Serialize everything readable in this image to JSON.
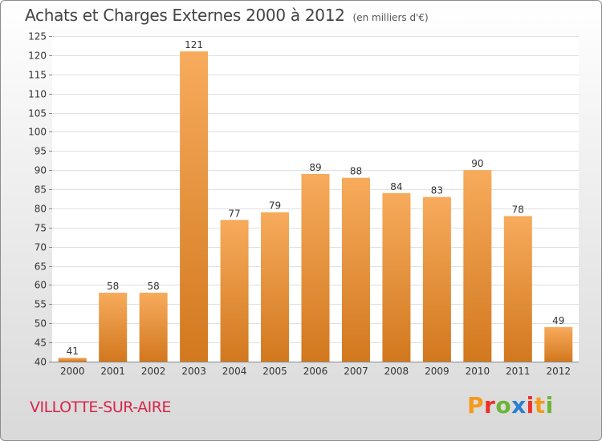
{
  "header": {
    "title": "Achats et Charges Externes 2000 à 2012",
    "unit": "(en milliers d'€)"
  },
  "footer": {
    "town": "VILLOTTE-SUR-AIRE",
    "brand": "Proxiti",
    "brand_colors": [
      "#f39a1e",
      "#e8322a",
      "#6bb536",
      "#2b7fd1",
      "#e8322a",
      "#f39a1e",
      "#6bb536"
    ]
  },
  "colors": {
    "bar_light": "#f7ab5c",
    "bar_dark": "#d2781e",
    "grid": "#e0e0e0",
    "axis_text": "#333333"
  },
  "chart_data": {
    "type": "bar",
    "title": "Achats et Charges Externes 2000 à 2012",
    "subtitle": "(en milliers d'€)",
    "xlabel": "",
    "ylabel": "",
    "categories": [
      "2000",
      "2001",
      "2002",
      "2003",
      "2004",
      "2005",
      "2006",
      "2007",
      "2008",
      "2009",
      "2010",
      "2011",
      "2012"
    ],
    "values": [
      41,
      58,
      58,
      121,
      77,
      79,
      89,
      88,
      84,
      83,
      90,
      78,
      49
    ],
    "ylim": [
      40,
      125
    ],
    "yticks": [
      40,
      45,
      50,
      55,
      60,
      65,
      70,
      75,
      80,
      85,
      90,
      95,
      100,
      105,
      110,
      115,
      120,
      125
    ],
    "grid": true,
    "data_labels": true
  }
}
